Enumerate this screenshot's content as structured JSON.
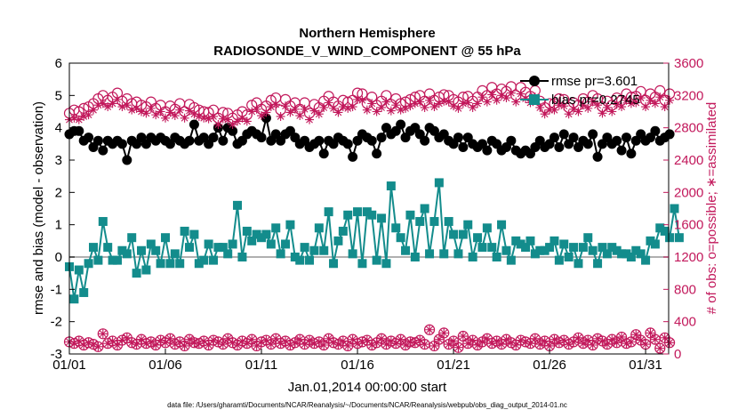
{
  "chart_data": {
    "type": "line",
    "title": "Northern Hemisphere",
    "subtitle": "RADIOSONDE_V_WIND_COMPONENT @ 55 hPa",
    "xlabel": "Jan.01,2014 00:00:00 start",
    "ylabel": "rmse and bias (model - observation)",
    "ylabel_right": "# of obs: o=possible; ∗=assimilated",
    "footnote": "data file: /Users/gharamti/Documents/NCAR/Reanalysis/~/Documents/NCAR/Reanalysis/webpub/obs_diag_output_2014-01.nc",
    "xlim": [
      1,
      32.2
    ],
    "ylim": [
      -3,
      6
    ],
    "ylim_right": [
      0,
      3600
    ],
    "x_ticks": [
      1,
      6,
      11,
      16,
      21,
      26,
      31
    ],
    "x_tick_labels": [
      "01/01",
      "01/06",
      "01/11",
      "01/16",
      "01/21",
      "01/26",
      "01/31"
    ],
    "y_ticks": [
      -3,
      -2,
      -1,
      0,
      1,
      2,
      3,
      4,
      5,
      6
    ],
    "y_tick_labels": [
      "-3",
      "-2",
      "-1",
      "0",
      "1",
      "2",
      "3",
      "4",
      "5",
      "6"
    ],
    "y_ticks_right": [
      0,
      400,
      800,
      1200,
      1600,
      2000,
      2400,
      2800,
      3200,
      3600
    ],
    "y_tick_labels_right": [
      "0",
      "400",
      "800",
      "1200",
      "1600",
      "2000",
      "2400",
      "2800",
      "3200",
      "3600"
    ],
    "x_start": 1.0,
    "x_step": 0.25,
    "series": [
      {
        "name": "rmse pr=3.601",
        "axis": "left",
        "color": "#000000",
        "marker": "circle",
        "values": [
          3.8,
          3.9,
          3.9,
          3.6,
          3.7,
          3.4,
          3.6,
          3.3,
          3.6,
          3.5,
          3.6,
          3.5,
          3.0,
          3.6,
          3.5,
          3.7,
          3.5,
          3.7,
          3.6,
          3.7,
          3.6,
          3.5,
          3.7,
          3.6,
          3.5,
          3.6,
          4.1,
          3.6,
          3.7,
          3.5,
          3.7,
          4.0,
          3.6,
          4.0,
          3.9,
          3.5,
          3.6,
          3.8,
          3.9,
          3.8,
          3.7,
          4.3,
          3.6,
          3.8,
          3.6,
          3.8,
          3.9,
          3.7,
          3.5,
          3.6,
          3.4,
          3.5,
          3.6,
          3.2,
          3.6,
          3.5,
          3.7,
          3.6,
          3.5,
          3.1,
          3.6,
          3.8,
          3.7,
          3.6,
          3.2,
          3.7,
          4.0,
          3.8,
          3.9,
          4.1,
          3.7,
          3.9,
          4.0,
          3.8,
          3.6,
          4.0,
          3.9,
          3.7,
          3.8,
          3.6,
          3.5,
          3.7,
          3.4,
          3.7,
          3.5,
          3.4,
          3.5,
          3.3,
          3.6,
          3.5,
          3.3,
          3.4,
          3.6,
          3.3,
          3.2,
          3.3,
          3.2,
          3.4,
          3.6,
          3.4,
          3.5,
          3.7,
          3.4,
          3.8,
          3.5,
          3.7,
          3.4,
          3.6,
          3.5,
          3.8,
          3.1,
          3.5,
          3.7,
          3.5,
          3.6,
          3.3,
          3.7,
          3.2,
          3.6,
          3.8,
          3.6,
          3.7,
          3.9,
          3.6,
          3.7,
          3.8
        ]
      },
      {
        "name": "bias pr=0.2745",
        "axis": "left",
        "color": "#138c8c",
        "marker": "square",
        "values": [
          -0.3,
          -1.3,
          -0.4,
          -1.1,
          -0.2,
          0.3,
          -0.1,
          1.1,
          0.3,
          -0.1,
          -0.1,
          0.2,
          0.1,
          0.6,
          -0.5,
          0.2,
          -0.4,
          0.4,
          0.2,
          -0.2,
          0.6,
          -0.2,
          0.1,
          -0.2,
          0.8,
          0.3,
          0.7,
          -0.2,
          -0.1,
          0.4,
          -0.1,
          0.3,
          0.3,
          0.1,
          0.4,
          1.6,
          0.0,
          0.8,
          0.5,
          0.7,
          0.6,
          0.7,
          0.4,
          0.9,
          0.1,
          0.4,
          1.0,
          0.0,
          -0.1,
          0.3,
          -0.1,
          0.2,
          0.9,
          0.2,
          1.4,
          -0.2,
          0.5,
          0.8,
          1.3,
          0.1,
          1.4,
          -0.2,
          1.4,
          1.3,
          -0.1,
          1.2,
          -0.2,
          2.2,
          0.9,
          0.6,
          0.2,
          1.3,
          0.0,
          1.1,
          1.5,
          0.1,
          1.1,
          2.3,
          0.1,
          1.1,
          0.7,
          0.1,
          0.7,
          1.0,
          0.0,
          0.6,
          0.3,
          0.9,
          0.3,
          0.0,
          1.0,
          0.2,
          -0.1,
          0.5,
          0.4,
          0.3,
          0.5,
          0.1,
          0.2,
          0.2,
          0.3,
          0.5,
          -0.1,
          0.4,
          0.0,
          0.3,
          -0.2,
          0.3,
          0.6,
          0.2,
          -0.2,
          0.3,
          0.1,
          0.3,
          0.2,
          0.1,
          0.1,
          0.0,
          0.2,
          0.1,
          -0.1,
          0.5,
          0.4,
          0.9,
          0.8,
          0.6,
          1.5,
          0.6
        ]
      },
      {
        "name": "obs possible",
        "axis": "right",
        "color": "#c2185b",
        "marker": "open-circle",
        "values": [
          2980,
          3020,
          3000,
          3040,
          3060,
          3100,
          3160,
          3200,
          3140,
          3180,
          3230,
          3130,
          3160,
          3100,
          3120,
          3080,
          3060,
          3120,
          3040,
          3080,
          3000,
          3070,
          3030,
          3100,
          3000,
          3090,
          3050,
          3020,
          3000,
          2990,
          3020,
          2920,
          2990,
          2980,
          2920,
          2960,
          3000,
          2960,
          3080,
          3110,
          3030,
          3070,
          3140,
          3170,
          3020,
          3150,
          3070,
          3110,
          3030,
          3110,
          2980,
          3090,
          3050,
          3130,
          3190,
          3120,
          3070,
          3140,
          3120,
          3140,
          3230,
          3220,
          3100,
          3180,
          3080,
          3130,
          3200,
          3090,
          3160,
          3100,
          3120,
          3150,
          3180,
          3200,
          3130,
          3220,
          3140,
          3180,
          3210,
          3200,
          3150,
          3120,
          3180,
          3190,
          3130,
          3180,
          3260,
          3200,
          3300,
          3220,
          3280,
          3250,
          3310,
          3200,
          3300,
          3240,
          3190,
          3260,
          3130,
          3050,
          3100,
          3100,
          3160,
          3150,
          3050,
          3110,
          3080,
          3160,
          3120,
          3200,
          3160,
          3060,
          3130,
          3080,
          3170,
          3140,
          3220,
          3180,
          3190,
          3250,
          3140,
          3220,
          3180,
          3260,
          3140,
          3220
        ]
      },
      {
        "name": "obs assimilated",
        "axis": "right",
        "color": "#c2185b",
        "marker": "asterisk",
        "values": [
          2900,
          2920,
          2900,
          2940,
          2960,
          3020,
          3080,
          3100,
          3060,
          3100,
          3150,
          3060,
          3080,
          3020,
          3040,
          3000,
          2980,
          3040,
          2960,
          3000,
          2920,
          2990,
          2950,
          3020,
          2920,
          3010,
          2970,
          2940,
          2920,
          2910,
          2940,
          2840,
          2910,
          2900,
          2840,
          2880,
          2920,
          2880,
          3000,
          3030,
          2950,
          2990,
          3060,
          3090,
          2940,
          3070,
          2990,
          3030,
          2950,
          3030,
          2900,
          3010,
          2970,
          3050,
          3110,
          3040,
          2990,
          3060,
          3040,
          3060,
          3150,
          3140,
          3020,
          3100,
          3000,
          3050,
          3120,
          3010,
          3080,
          3020,
          3040,
          3070,
          3100,
          3120,
          3050,
          3140,
          3060,
          3100,
          3130,
          3120,
          3070,
          3040,
          3100,
          3110,
          3050,
          3100,
          3180,
          3120,
          3210,
          3140,
          3200,
          3170,
          3230,
          3120,
          3220,
          3160,
          3110,
          3180,
          3050,
          2970,
          3020,
          3020,
          3080,
          3070,
          2970,
          3030,
          3000,
          3080,
          3040,
          3120,
          3080,
          2980,
          3050,
          3000,
          3090,
          3060,
          3140,
          3100,
          3110,
          3170,
          3060,
          3140,
          3100,
          3180,
          3060,
          3140
        ]
      },
      {
        "name": "obs possible (bottom)",
        "axis": "right",
        "color": "#c2185b",
        "marker": "open-circle",
        "values": [
          150,
          130,
          160,
          110,
          140,
          120,
          90,
          250,
          130,
          160,
          110,
          170,
          200,
          140,
          120,
          180,
          130,
          150,
          110,
          170,
          140,
          190,
          120,
          150,
          100,
          180,
          140,
          130,
          160,
          110,
          170,
          150,
          120,
          190,
          140,
          110,
          160,
          130,
          180,
          100,
          150,
          170,
          120,
          190,
          130,
          160,
          110,
          140,
          180,
          120,
          170,
          130,
          150,
          110,
          190,
          140,
          120,
          160,
          100,
          180,
          130,
          150,
          170,
          110,
          140,
          190,
          120,
          160,
          130,
          180,
          110,
          150,
          140,
          170,
          120,
          300,
          100,
          180,
          260,
          120,
          160,
          80,
          220,
          130,
          170,
          110,
          150,
          190,
          130,
          160,
          120,
          180,
          140,
          110,
          170,
          150,
          130,
          190,
          120,
          160,
          100,
          180,
          140,
          170,
          120,
          150,
          200,
          130,
          170,
          110,
          190,
          160,
          120,
          180,
          140,
          210,
          130,
          150,
          240,
          170,
          120,
          260,
          180,
          70,
          200,
          140
        ]
      },
      {
        "name": "obs assimilated (bottom)",
        "axis": "right",
        "color": "#c2185b",
        "marker": "asterisk",
        "values": [
          150,
          130,
          160,
          110,
          140,
          120,
          90,
          250,
          130,
          160,
          110,
          170,
          200,
          140,
          120,
          180,
          130,
          150,
          110,
          170,
          140,
          190,
          120,
          150,
          100,
          180,
          140,
          130,
          160,
          110,
          170,
          150,
          120,
          190,
          140,
          110,
          160,
          130,
          180,
          100,
          150,
          170,
          120,
          190,
          130,
          160,
          110,
          140,
          180,
          120,
          170,
          130,
          150,
          110,
          190,
          140,
          120,
          160,
          100,
          180,
          130,
          150,
          170,
          110,
          140,
          190,
          120,
          160,
          130,
          180,
          110,
          150,
          140,
          170,
          120,
          300,
          100,
          180,
          260,
          120,
          160,
          80,
          220,
          130,
          170,
          110,
          150,
          190,
          130,
          160,
          120,
          180,
          140,
          110,
          170,
          150,
          130,
          190,
          120,
          160,
          100,
          180,
          140,
          170,
          120,
          150,
          200,
          130,
          170,
          110,
          190,
          160,
          120,
          180,
          140,
          210,
          130,
          150,
          240,
          170,
          120,
          260,
          180,
          70,
          200,
          140
        ]
      }
    ],
    "legend": [
      "rmse pr=3.601",
      "bias pr=0.2745"
    ],
    "legend_position": "top-right",
    "zero_line": true
  }
}
